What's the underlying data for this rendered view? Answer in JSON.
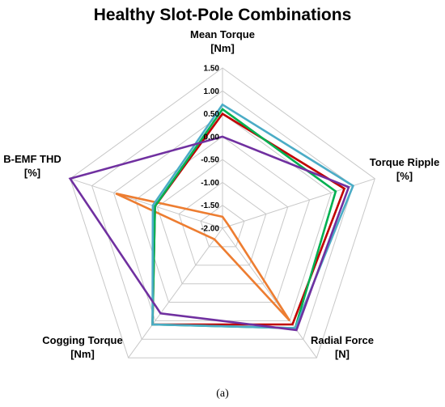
{
  "caption": "(a)",
  "chart_data": {
    "type": "radar",
    "title": "Healthy Slot-Pole Combinations",
    "axes": [
      {
        "line1": "Mean Torque",
        "line2": "[Nm]"
      },
      {
        "line1": "Torque Ripple",
        "line2": "[%]"
      },
      {
        "line1": "Radial Force",
        "line2": "[N]"
      },
      {
        "line1": "Cogging Torque",
        "line2": "[Nm]"
      },
      {
        "line1": "B-EMF THD",
        "line2": "[%]"
      }
    ],
    "ticks": [
      "-2.00",
      "-1.50",
      "-1.00",
      "-0.50",
      "0.00",
      "0.50",
      "1.00",
      "1.50"
    ],
    "range": [
      -2.0,
      1.5
    ],
    "grid": true,
    "legend": "none",
    "series": [
      {
        "color": "#ED7D31",
        "values": [
          -1.75,
          -1.85,
          0.5,
          -1.7,
          0.45
        ]
      },
      {
        "color": "#C00000",
        "values": [
          0.5,
          0.8,
          0.6,
          0.6,
          -0.45
        ]
      },
      {
        "color": "#00B050",
        "values": [
          0.6,
          0.6,
          0.7,
          0.6,
          -0.45
        ]
      },
      {
        "color": "#4BACC6",
        "values": [
          0.7,
          1.0,
          0.7,
          0.6,
          -0.4
        ]
      },
      {
        "color": "#7030A0",
        "values": [
          0.0,
          0.9,
          0.75,
          0.3,
          1.5
        ]
      }
    ]
  }
}
